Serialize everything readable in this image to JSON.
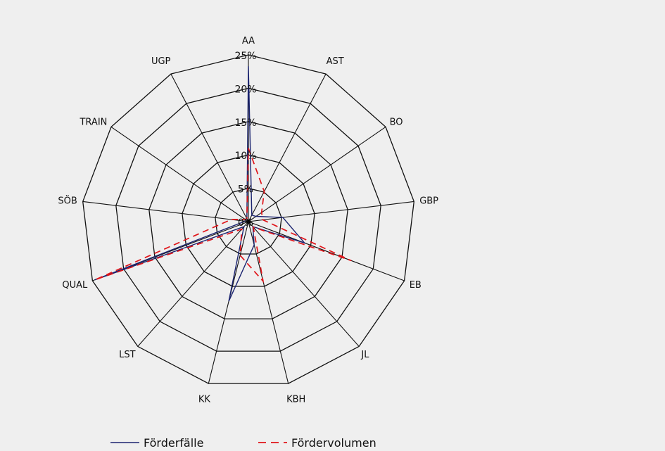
{
  "chart_data": {
    "type": "radar",
    "title": "",
    "categories": [
      "AA",
      "AST",
      "BO",
      "GBP",
      "EB",
      "JL",
      "KBH",
      "KK",
      "LST",
      "QUAL",
      "SÖB",
      "TRAIN",
      "UGP"
    ],
    "ticks": [
      "0%",
      "5%",
      "10%",
      "15%",
      "20%",
      "25%"
    ],
    "rmax": 25,
    "grid": true,
    "legend_position": "bottom",
    "series": [
      {
        "name": "Förderfälle",
        "color": "#1b2470",
        "dash": "solid",
        "values": [
          23.3,
          1.1,
          1.4,
          5.2,
          9.0,
          1.0,
          3.6,
          12.3,
          1.0,
          24.6,
          0.5,
          0.5,
          0.5
        ]
      },
      {
        "name": "Fördervolumen",
        "color": "#e0151a",
        "dash": "dashed",
        "values": [
          11.0,
          5.1,
          2.4,
          2.2,
          16.5,
          1.1,
          9.2,
          5.2,
          1.5,
          24.6,
          2.6,
          0.6,
          0.5
        ]
      }
    ]
  }
}
